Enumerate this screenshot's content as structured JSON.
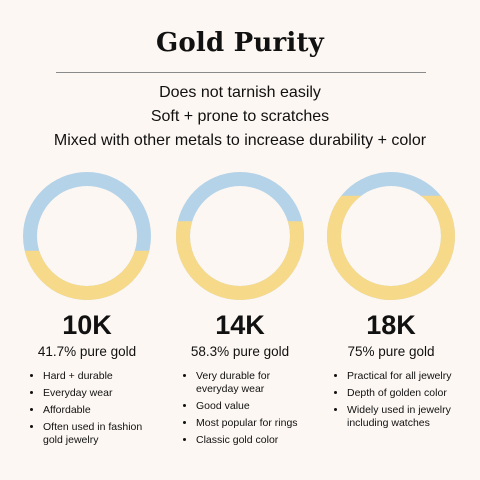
{
  "title": "Gold Purity",
  "facts": [
    "Does not tarnish easily",
    "Soft + prone to scratches",
    "Mixed with other metals to increase durability + color"
  ],
  "colors": {
    "gold": "#f7d98a",
    "alloy": "#b4d3e8",
    "background": "#fcf7f2"
  },
  "karats": [
    {
      "label": "10K",
      "purity_text": "41.7% pure gold",
      "gold_fraction": 0.417,
      "bullets": [
        "Hard + durable",
        "Everyday wear",
        "Affordable",
        "Often used in fashion gold jewelry"
      ]
    },
    {
      "label": "14K",
      "purity_text": "58.3% pure gold",
      "gold_fraction": 0.583,
      "bullets": [
        "Very durable for everyday wear",
        "Good value",
        "Most popular for rings",
        "Classic gold color"
      ]
    },
    {
      "label": "18K",
      "purity_text": "75% pure gold",
      "gold_fraction": 0.75,
      "bullets": [
        "Practical for all jewelry",
        "Depth of golden color",
        "Widely used in jewelry including watches"
      ]
    }
  ]
}
